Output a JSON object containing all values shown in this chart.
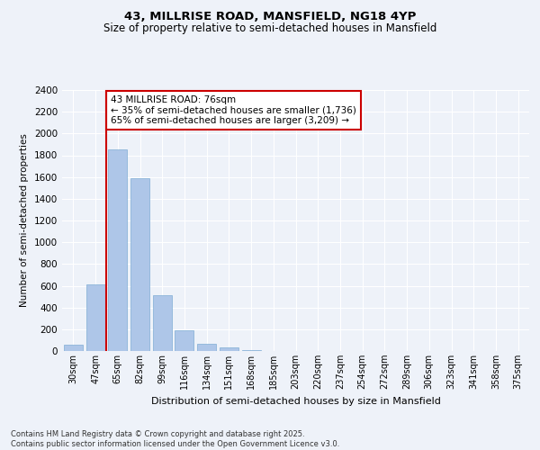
{
  "title1": "43, MILLRISE ROAD, MANSFIELD, NG18 4YP",
  "title2": "Size of property relative to semi-detached houses in Mansfield",
  "xlabel": "Distribution of semi-detached houses by size in Mansfield",
  "ylabel": "Number of semi-detached properties",
  "categories": [
    "30sqm",
    "47sqm",
    "65sqm",
    "82sqm",
    "99sqm",
    "116sqm",
    "134sqm",
    "151sqm",
    "168sqm",
    "185sqm",
    "203sqm",
    "220sqm",
    "237sqm",
    "254sqm",
    "272sqm",
    "289sqm",
    "306sqm",
    "323sqm",
    "341sqm",
    "358sqm",
    "375sqm"
  ],
  "values": [
    55,
    610,
    1850,
    1590,
    510,
    190,
    65,
    30,
    10,
    0,
    0,
    0,
    0,
    0,
    0,
    0,
    0,
    0,
    0,
    0,
    0
  ],
  "bar_color": "#aec6e8",
  "bar_edge_color": "#7fadd4",
  "property_label": "43 MILLRISE ROAD: 76sqm",
  "vline_x": 1.5,
  "pct_smaller": 35,
  "pct_larger": 65,
  "count_smaller": 1736,
  "count_larger": 3209,
  "vline_color": "#cc0000",
  "annotation_box_color": "#cc0000",
  "ylim": [
    0,
    2400
  ],
  "yticks": [
    0,
    200,
    400,
    600,
    800,
    1000,
    1200,
    1400,
    1600,
    1800,
    2000,
    2200,
    2400
  ],
  "background_color": "#eef2f9",
  "grid_color": "#ffffff",
  "footer": "Contains HM Land Registry data © Crown copyright and database right 2025.\nContains public sector information licensed under the Open Government Licence v3.0."
}
